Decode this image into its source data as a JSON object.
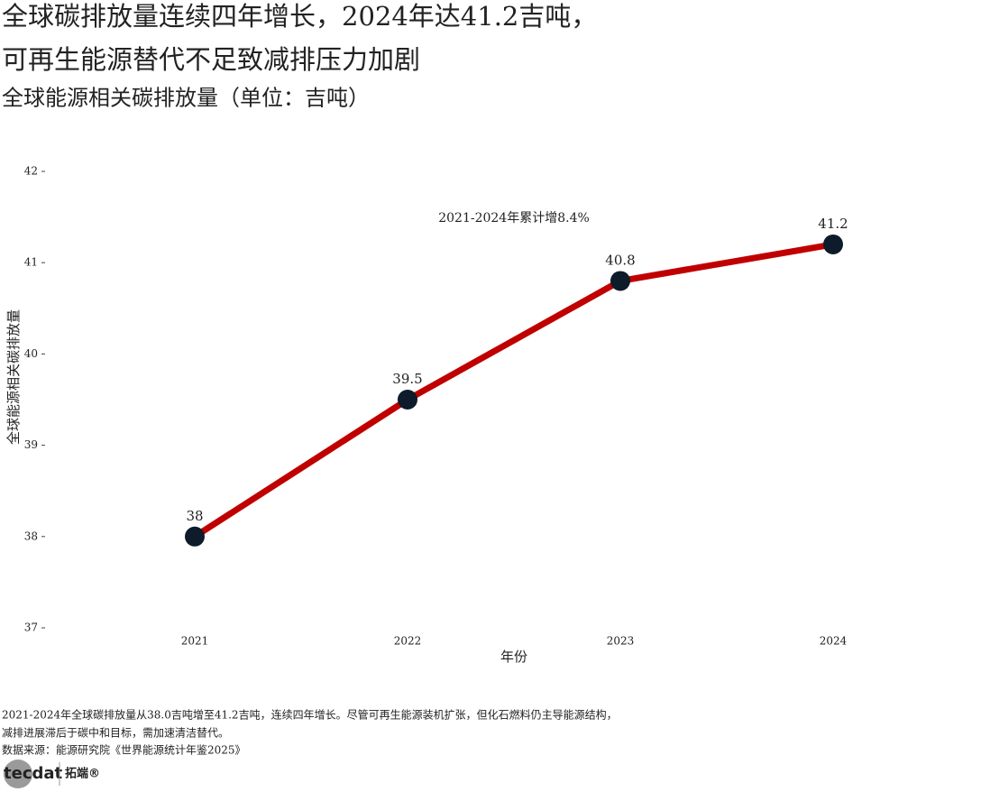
{
  "chart_data": {
    "type": "line",
    "title_lines": [
      "全球碳排放量连续四年增长，2024年达41.2吉吨，",
      "可再生能源替代不足致减排压力加剧"
    ],
    "subtitle": "全球能源相关碳排放量（单位：吉吨）",
    "x_label": "年份",
    "y_label": "全球能源相关碳排放量",
    "categories": [
      "2021",
      "2022",
      "2023",
      "2024"
    ],
    "values": [
      38,
      39.5,
      40.8,
      41.2
    ],
    "line_color": "#c00000",
    "marker_color": "#0d1b2a",
    "ylim": [
      37,
      42
    ],
    "yticks": [
      37,
      38,
      39,
      40,
      41,
      42
    ],
    "annotation": "2021-2024年累计增8.4%",
    "note_lines": [
      "2021-2024年全球碳排放量从38.0吉吨增至41.2吉吨，连续四年增长。尽管可再生能源装机扩张，但化石燃料仍主导能源结构，",
      "减排进展滞后于碳中和目标，需加速清洁替代。"
    ],
    "source": "数据来源：能源研究院《世界能源统计年鉴2025》",
    "logo": {
      "brand": "tecdat",
      "name": "拓端®"
    }
  }
}
